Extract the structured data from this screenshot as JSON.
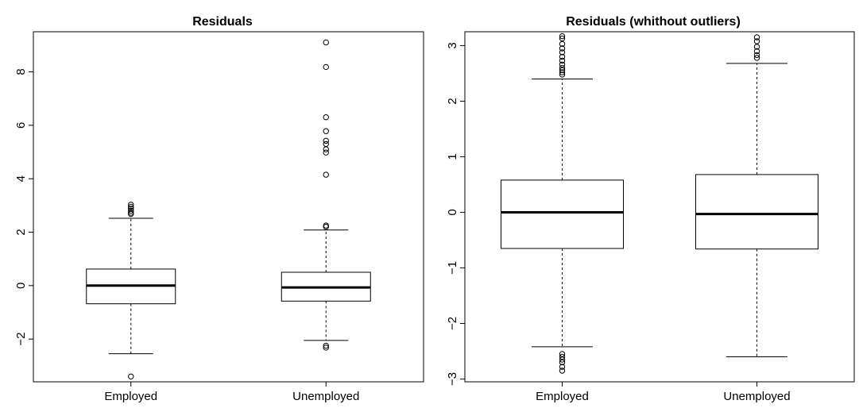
{
  "chart_data": [
    {
      "type": "box",
      "title": "Residuals",
      "xlabel": "",
      "ylabel": "",
      "categories": [
        "Employed",
        "Unemployed"
      ],
      "ylim": [
        -3.6,
        9.5
      ],
      "yticks": [
        -2,
        0,
        2,
        4,
        6,
        8
      ],
      "ytick_labels": [
        "−2",
        "0",
        "2",
        "4",
        "6",
        "8"
      ],
      "boxes": [
        {
          "name": "Employed",
          "whisker_low": -2.55,
          "q1": -0.68,
          "median": 0.0,
          "q3": 0.62,
          "whisker_high": 2.52,
          "outliers": [
            3.03,
            2.95,
            2.88,
            2.8,
            2.73,
            2.68,
            -3.4
          ]
        },
        {
          "name": "Unemployed",
          "whisker_low": -2.05,
          "q1": -0.58,
          "median": -0.07,
          "q3": 0.5,
          "whisker_high": 2.08,
          "outliers": [
            9.1,
            8.18,
            6.3,
            5.78,
            5.42,
            5.3,
            5.1,
            4.98,
            4.15,
            2.25,
            2.2,
            -2.25,
            -2.32
          ]
        }
      ]
    },
    {
      "type": "box",
      "title": "Residuals (whithout outliers)",
      "xlabel": "",
      "ylabel": "",
      "categories": [
        "Employed",
        "Unemployed"
      ],
      "ylim": [
        -3.05,
        3.25
      ],
      "yticks": [
        -3,
        -2,
        -1,
        0,
        1,
        2,
        3
      ],
      "ytick_labels": [
        "−3",
        "−2",
        "−1",
        "0",
        "1",
        "2",
        "3"
      ],
      "boxes": [
        {
          "name": "Employed",
          "whisker_low": -2.42,
          "q1": -0.65,
          "median": 0.0,
          "q3": 0.58,
          "whisker_high": 2.4,
          "outliers": [
            3.17,
            3.13,
            3.03,
            2.95,
            2.88,
            2.8,
            2.73,
            2.66,
            2.6,
            2.56,
            2.52,
            2.48,
            -2.55,
            -2.6,
            -2.65,
            -2.7,
            -2.78,
            -2.85
          ]
        },
        {
          "name": "Unemployed",
          "whisker_low": -2.6,
          "q1": -0.66,
          "median": -0.03,
          "q3": 0.68,
          "whisker_high": 2.68,
          "outliers": [
            3.15,
            3.08,
            2.98,
            2.9,
            2.83,
            2.78
          ]
        }
      ]
    }
  ]
}
